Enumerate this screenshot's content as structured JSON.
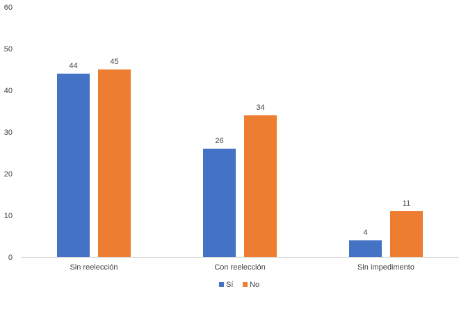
{
  "chart_data": {
    "type": "bar",
    "title": "",
    "xlabel": "",
    "ylabel": "",
    "categories": [
      "Sin reelección",
      "Con reelección",
      "Sin impedimento"
    ],
    "series": [
      {
        "name": "Sí",
        "values": [
          44,
          26,
          4
        ],
        "color": "#4472C4"
      },
      {
        "name": "No",
        "values": [
          45,
          34,
          11
        ],
        "color": "#ED7D31"
      }
    ],
    "ylim": [
      0,
      60
    ],
    "yticks": [
      0,
      10,
      20,
      30,
      40,
      50,
      60
    ],
    "grid": false,
    "data_labels": true,
    "legend_position": "bottom"
  }
}
